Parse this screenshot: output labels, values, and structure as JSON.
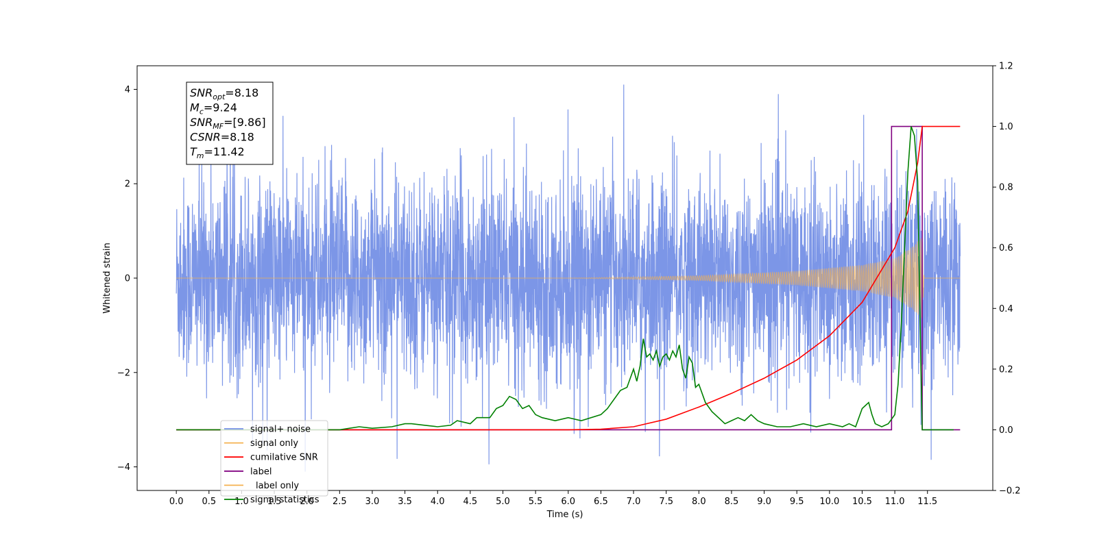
{
  "chart_data": {
    "type": "line",
    "title": "",
    "xlabel": "Time (s)",
    "ylabel": "Whitened strain",
    "xlim": [
      -0.6,
      12.5
    ],
    "ylim": [
      -4.5,
      4.5
    ],
    "y2lim": [
      -0.2,
      1.2
    ],
    "grid": false,
    "legend_position": "lower-left",
    "x_ticks": [
      "0.0",
      "0.5",
      "1.0",
      "1.5",
      "2.0",
      "2.5",
      "3.0",
      "3.5",
      "4.0",
      "4.5",
      "5.0",
      "5.5",
      "6.0",
      "6.5",
      "7.0",
      "7.5",
      "8.0",
      "8.5",
      "9.0",
      "9.5",
      "10.0",
      "10.5",
      "11.0",
      "11.5"
    ],
    "y_ticks": [
      "−4",
      "−2",
      "0",
      "2",
      "4"
    ],
    "y2_ticks": [
      "−0.2",
      "0.0",
      "0.2",
      "0.4",
      "0.6",
      "0.8",
      "1.0",
      "1.2"
    ],
    "annotation": {
      "lines": [
        {
          "sym": "SNR",
          "sub": "opt",
          "value": "=8.18"
        },
        {
          "sym": "M",
          "sub": "c",
          "value": "=9.24"
        },
        {
          "sym": "SNR",
          "sub": "MF",
          "value": "=[9.86]"
        },
        {
          "sym": "CSNR",
          "sub": "",
          "value": "=8.18"
        },
        {
          "sym": "T",
          "sub": "m",
          "value": "=11.42"
        }
      ]
    },
    "series": [
      {
        "name": "signal+ noise",
        "color": "#7590e6",
        "axis": "left",
        "x_range": [
          0.0,
          12.0
        ],
        "noise_amplitude": 1.0,
        "y_extent": [
          -4.1,
          4.1
        ]
      },
      {
        "name": "signal only",
        "color": "#f5b14f",
        "axis": "left",
        "x_range": [
          0.0,
          12.0
        ],
        "merger_time": 11.42,
        "envelope": {
          "x": [
            0.0,
            6.0,
            8.0,
            9.5,
            10.5,
            11.0,
            11.3,
            11.42,
            11.45,
            12.0
          ],
          "y": [
            0.0,
            0.0,
            0.05,
            0.15,
            0.28,
            0.42,
            0.7,
            0.9,
            0.0,
            0.0
          ]
        }
      },
      {
        "name": "cumilative SNR",
        "color": "#ff0000",
        "axis": "right",
        "x": [
          0.0,
          6.0,
          6.5,
          7.0,
          7.5,
          8.0,
          8.5,
          9.0,
          9.5,
          10.0,
          10.5,
          11.0,
          11.2,
          11.35,
          11.42,
          12.0
        ],
        "y": [
          0.0,
          0.0,
          0.002,
          0.01,
          0.035,
          0.075,
          0.12,
          0.17,
          0.23,
          0.31,
          0.42,
          0.6,
          0.72,
          0.88,
          1.0,
          1.0
        ]
      },
      {
        "name": "label",
        "color": "#800080",
        "axis": "right",
        "x": [
          0.0,
          10.95,
          10.95,
          11.42,
          11.42,
          12.0
        ],
        "y": [
          0.0,
          0.0,
          1.0,
          1.0,
          0.0,
          0.0
        ]
      },
      {
        "name": "label only",
        "color": "#f5b14f",
        "axis": "right",
        "x": [],
        "y": []
      },
      {
        "name": "signal statistics",
        "color": "#008000",
        "axis": "right",
        "x": [
          0.0,
          2.5,
          2.8,
          3.0,
          3.3,
          3.5,
          3.6,
          3.8,
          4.0,
          4.2,
          4.3,
          4.5,
          4.6,
          4.8,
          4.9,
          5.0,
          5.1,
          5.2,
          5.3,
          5.4,
          5.5,
          5.6,
          5.8,
          6.0,
          6.2,
          6.5,
          6.6,
          6.8,
          6.9,
          7.0,
          7.05,
          7.1,
          7.15,
          7.2,
          7.25,
          7.3,
          7.35,
          7.4,
          7.45,
          7.5,
          7.55,
          7.6,
          7.65,
          7.7,
          7.75,
          7.8,
          7.85,
          7.9,
          7.95,
          8.0,
          8.1,
          8.2,
          8.4,
          8.5,
          8.6,
          8.7,
          8.8,
          8.9,
          9.0,
          9.2,
          9.4,
          9.6,
          9.8,
          10.0,
          10.2,
          10.3,
          10.4,
          10.5,
          10.55,
          10.6,
          10.65,
          10.7,
          10.8,
          10.9,
          11.0,
          11.05,
          11.1,
          11.15,
          11.2,
          11.25,
          11.3,
          11.35,
          11.4,
          11.42,
          11.5,
          11.9
        ],
        "y": [
          0.0,
          0.0,
          0.01,
          0.005,
          0.01,
          0.02,
          0.02,
          0.015,
          0.01,
          0.015,
          0.03,
          0.02,
          0.04,
          0.04,
          0.07,
          0.08,
          0.11,
          0.1,
          0.07,
          0.08,
          0.05,
          0.04,
          0.03,
          0.04,
          0.03,
          0.05,
          0.07,
          0.13,
          0.14,
          0.2,
          0.16,
          0.21,
          0.3,
          0.24,
          0.25,
          0.23,
          0.26,
          0.21,
          0.24,
          0.25,
          0.23,
          0.26,
          0.24,
          0.28,
          0.2,
          0.17,
          0.24,
          0.22,
          0.14,
          0.15,
          0.09,
          0.06,
          0.02,
          0.03,
          0.04,
          0.03,
          0.05,
          0.03,
          0.02,
          0.01,
          0.01,
          0.02,
          0.01,
          0.02,
          0.01,
          0.02,
          0.01,
          0.07,
          0.08,
          0.09,
          0.05,
          0.02,
          0.01,
          0.02,
          0.05,
          0.15,
          0.35,
          0.6,
          0.85,
          1.0,
          0.97,
          0.82,
          0.2,
          0.0,
          0.0,
          0.0
        ]
      }
    ]
  }
}
